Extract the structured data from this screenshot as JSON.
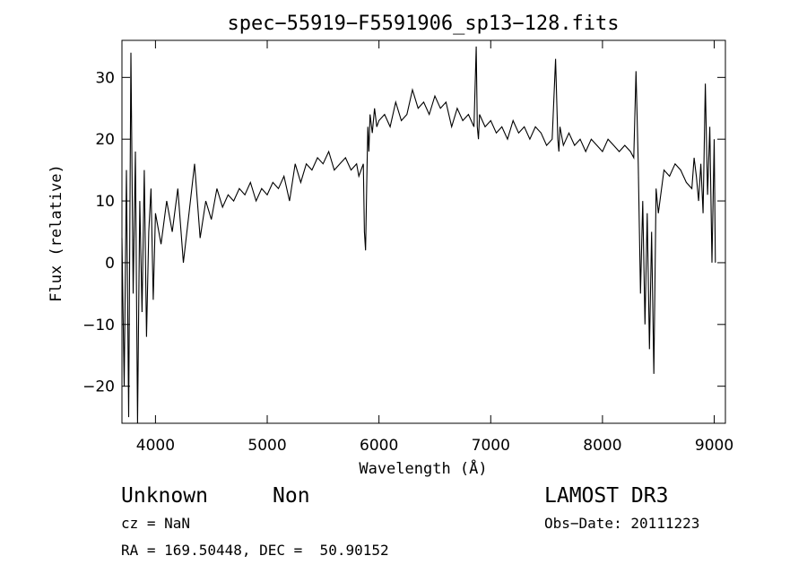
{
  "chart_data": {
    "type": "line",
    "title": "spec−55919−F5591906_sp13−128.fits",
    "xlabel": "Wavelength (Å)",
    "ylabel": "Flux (relative)",
    "xlim": [
      3700,
      9100
    ],
    "ylim": [
      -26,
      36
    ],
    "x_ticks": [
      4000,
      5000,
      6000,
      7000,
      8000,
      9000
    ],
    "y_ticks": [
      -20,
      -10,
      0,
      10,
      20,
      30
    ],
    "y_tick_labels": [
      "−20",
      "−10",
      "0",
      "10",
      "20",
      "30"
    ],
    "grid": false,
    "series": [
      {
        "x": [
          3700,
          3720,
          3740,
          3760,
          3780,
          3800,
          3820,
          3840,
          3860,
          3880,
          3900,
          3920,
          3940,
          3960,
          3980,
          4000,
          4050,
          4100,
          4150,
          4200,
          4250,
          4300,
          4350,
          4400,
          4450,
          4500,
          4550,
          4600,
          4650,
          4700,
          4750,
          4800,
          4850,
          4900,
          4950,
          5000,
          5050,
          5100,
          5150,
          5200,
          5250,
          5300,
          5350,
          5400,
          5450,
          5500,
          5550,
          5600,
          5650,
          5700,
          5750,
          5800,
          5820,
          5840,
          5860,
          5870,
          5880,
          5890,
          5900,
          5910,
          5920,
          5940,
          5960,
          5980,
          6000,
          6050,
          6100,
          6150,
          6200,
          6250,
          6300,
          6350,
          6400,
          6450,
          6500,
          6550,
          6600,
          6650,
          6700,
          6750,
          6800,
          6850,
          6870,
          6880,
          6890,
          6900,
          6950,
          7000,
          7050,
          7100,
          7150,
          7200,
          7250,
          7300,
          7350,
          7400,
          7450,
          7500,
          7550,
          7580,
          7600,
          7610,
          7620,
          7650,
          7700,
          7750,
          7800,
          7850,
          7900,
          7950,
          8000,
          8050,
          8100,
          8150,
          8200,
          8250,
          8280,
          8300,
          8320,
          8340,
          8360,
          8380,
          8400,
          8420,
          8440,
          8460,
          8480,
          8500,
          8550,
          8600,
          8650,
          8700,
          8750,
          8800,
          8820,
          8840,
          8860,
          8880,
          8900,
          8920,
          8940,
          8960,
          8980,
          9000,
          9010
        ],
        "y": [
          4,
          -20,
          15,
          -25,
          34,
          -5,
          18,
          -26,
          10,
          -8,
          15,
          -12,
          5,
          12,
          -6,
          8,
          3,
          10,
          5,
          12,
          0,
          8,
          16,
          4,
          10,
          7,
          12,
          9,
          11,
          10,
          12,
          11,
          13,
          10,
          12,
          11,
          13,
          12,
          14,
          10,
          16,
          13,
          16,
          15,
          17,
          16,
          18,
          15,
          16,
          17,
          15,
          16,
          14,
          15,
          16,
          5,
          2,
          12,
          22,
          18,
          24,
          21,
          25,
          22,
          23,
          24,
          22,
          26,
          23,
          24,
          28,
          25,
          26,
          24,
          27,
          25,
          26,
          22,
          25,
          23,
          24,
          22,
          35,
          22,
          20,
          24,
          22,
          23,
          21,
          22,
          20,
          23,
          21,
          22,
          20,
          22,
          21,
          19,
          20,
          33,
          20,
          18,
          22,
          19,
          21,
          19,
          20,
          18,
          20,
          19,
          18,
          20,
          19,
          18,
          19,
          18,
          17,
          31,
          16,
          -5,
          10,
          -10,
          8,
          -14,
          5,
          -18,
          12,
          8,
          15,
          14,
          16,
          15,
          13,
          12,
          17,
          14,
          10,
          16,
          8,
          29,
          11,
          22,
          0,
          20,
          0
        ]
      }
    ]
  },
  "annotations": {
    "object_class": "Unknown",
    "object_subclass": "Non",
    "survey": "LAMOST DR3",
    "cz": "cz = NaN",
    "obs_date": "Obs−Date: 20111223",
    "coords": "RA = 169.50448, DEC =  50.90152"
  }
}
